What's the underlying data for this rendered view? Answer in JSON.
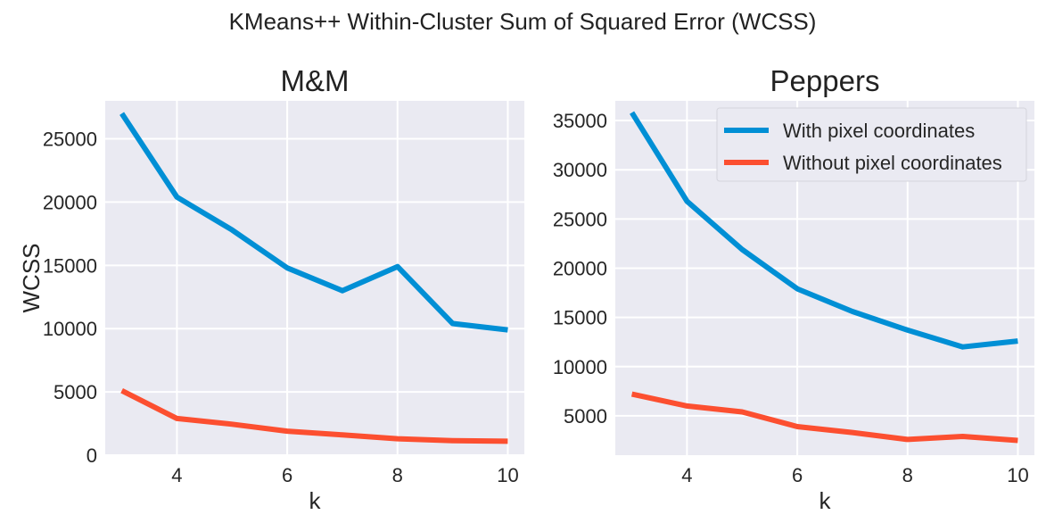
{
  "figure": {
    "suptitle": "KMeans++ Within-Cluster Sum of Squared Error (WCSS)"
  },
  "colors": {
    "with_pixel": "#008fd5",
    "without_pixel": "#fc4f30",
    "axes_bg": "#eaeaf2"
  },
  "legend": {
    "position": "upper right",
    "entries": [
      "With pixel coordinates",
      "Without pixel coordinates"
    ]
  },
  "chart_data": [
    {
      "type": "line",
      "title": "M&M",
      "xlabel": "k",
      "ylabel": "WCSS",
      "grid": true,
      "xlim": [
        2.7,
        10.3
      ],
      "ylim": [
        0,
        28000
      ],
      "xticks": [
        4,
        6,
        8,
        10
      ],
      "yticks": [
        0,
        5000,
        10000,
        15000,
        20000,
        25000
      ],
      "x": [
        3,
        4,
        5,
        6,
        7,
        8,
        9,
        10
      ],
      "series": [
        {
          "name": "With pixel coordinates",
          "color": "#008fd5",
          "values": [
            27000,
            20400,
            17800,
            14800,
            13000,
            14900,
            10400,
            9900
          ]
        },
        {
          "name": "Without pixel coordinates",
          "color": "#fc4f30",
          "values": [
            5100,
            2900,
            2450,
            1900,
            1600,
            1300,
            1150,
            1100
          ]
        }
      ]
    },
    {
      "type": "line",
      "title": "Peppers",
      "xlabel": "k",
      "ylabel": "",
      "grid": true,
      "xlim": [
        2.7,
        10.3
      ],
      "ylim": [
        1000,
        37000
      ],
      "xticks": [
        4,
        6,
        8,
        10
      ],
      "yticks": [
        5000,
        10000,
        15000,
        20000,
        25000,
        30000,
        35000
      ],
      "x": [
        3,
        4,
        5,
        6,
        7,
        8,
        9,
        10
      ],
      "series": [
        {
          "name": "With pixel coordinates",
          "color": "#008fd5",
          "values": [
            35800,
            26800,
            21900,
            17900,
            15600,
            13700,
            12000,
            12600
          ]
        },
        {
          "name": "Without pixel coordinates",
          "color": "#fc4f30",
          "values": [
            7200,
            6000,
            5400,
            3900,
            3300,
            2600,
            2900,
            2500
          ]
        }
      ]
    }
  ]
}
